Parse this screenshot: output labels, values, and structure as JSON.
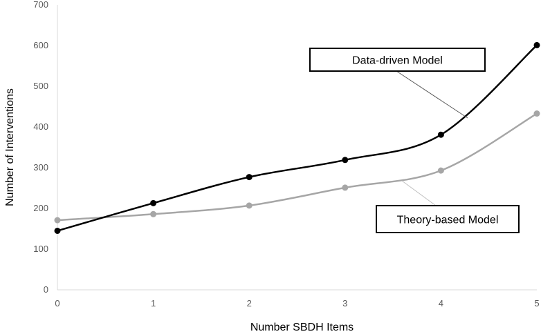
{
  "chart_data": {
    "type": "line",
    "x": [
      0,
      1,
      2,
      3,
      4,
      5
    ],
    "xlabel": "Number SBDH Items",
    "ylabel": "Number of Interventions",
    "xlim": [
      0,
      5
    ],
    "ylim": [
      0,
      700
    ],
    "yticks": [
      0,
      100,
      200,
      300,
      400,
      500,
      600,
      700
    ],
    "xticks": [
      0,
      1,
      2,
      3,
      4,
      5
    ],
    "grid": false,
    "series": [
      {
        "name": "Data-driven Model",
        "values": [
          145,
          213,
          277,
          319,
          381,
          601
        ],
        "color": "#000000"
      },
      {
        "name": "Theory-based Model",
        "values": [
          171,
          186,
          207,
          251,
          293,
          433
        ],
        "color": "#a6a6a6"
      }
    ],
    "annotations": [
      {
        "text": "Data-driven Model",
        "series": 0
      },
      {
        "text": "Theory-based Model",
        "series": 1
      }
    ]
  }
}
